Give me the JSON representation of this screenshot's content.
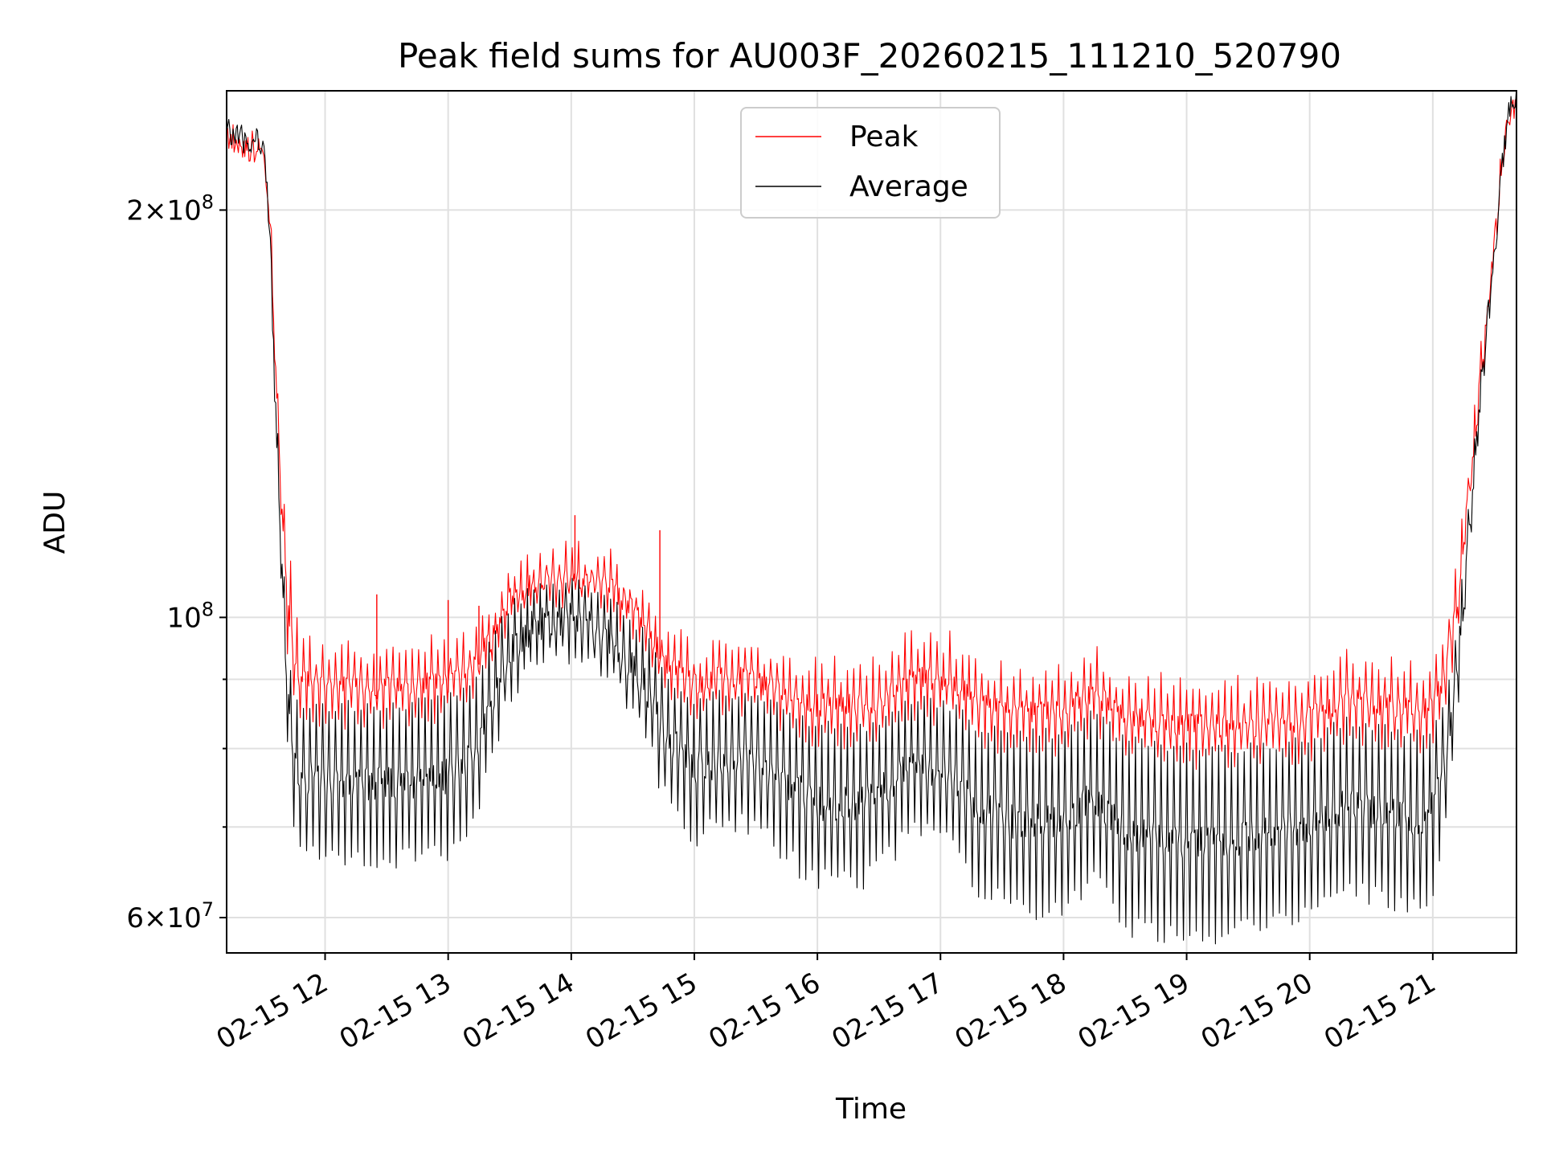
{
  "chart_data": {
    "type": "line",
    "title": "Peak field sums for AU003F_20260215_111210_520790",
    "xlabel": "Time",
    "ylabel": "ADU",
    "yscale": "log",
    "xlim": [
      11.2,
      21.68
    ],
    "ylim": [
      56500000,
      245000000
    ],
    "grid": true,
    "legend_position": "top-center",
    "x_ticks": [
      {
        "value": 12,
        "label": "02-15 12"
      },
      {
        "value": 13,
        "label": "02-15 13"
      },
      {
        "value": 14,
        "label": "02-15 14"
      },
      {
        "value": 15,
        "label": "02-15 15"
      },
      {
        "value": 16,
        "label": "02-15 16"
      },
      {
        "value": 17,
        "label": "02-15 17"
      },
      {
        "value": 18,
        "label": "02-15 18"
      },
      {
        "value": 19,
        "label": "02-15 19"
      },
      {
        "value": 20,
        "label": "02-15 20"
      },
      {
        "value": 21,
        "label": "02-15 21"
      }
    ],
    "y_major_ticks": [
      {
        "value": 60000000,
        "base": "6",
        "exp": "7"
      },
      {
        "value": 100000000,
        "base": "",
        "exp": "8"
      },
      {
        "value": 200000000,
        "base": "2",
        "exp": "8"
      }
    ],
    "y_minor_gridlines": [
      70000000,
      80000000,
      90000000
    ],
    "series": [
      {
        "name": "Peak",
        "color": "#ff0000",
        "envelope_x": [
          11.2,
          11.5,
          11.55,
          11.6,
          11.65,
          11.7,
          11.75,
          11.8,
          11.9,
          12.0,
          12.5,
          13.0,
          13.2,
          13.35,
          13.5,
          13.7,
          14.0,
          14.3,
          14.6,
          14.75,
          15.0,
          15.4,
          15.8,
          16.0,
          16.4,
          16.8,
          17.1,
          17.3,
          17.6,
          18.0,
          18.25,
          18.5,
          19.0,
          19.5,
          20.0,
          20.3,
          20.6,
          20.9,
          21.0,
          21.1,
          21.2,
          21.3,
          21.4,
          21.5,
          21.55,
          21.6,
          21.68
        ],
        "envelope_peak": [
          230000000,
          225000000,
          205000000,
          155000000,
          128000000,
          112000000,
          103000000,
          97000000,
          95000000,
          95000000,
          95000000,
          96000000,
          97000000,
          100000000,
          108000000,
          111000000,
          112000000,
          111000000,
          104000000,
          98000000,
          95000000,
          96000000,
          93000000,
          92000000,
          92000000,
          97000000,
          96000000,
          93000000,
          91000000,
          91000000,
          94000000,
          90000000,
          89000000,
          89000000,
          90000000,
          93000000,
          92000000,
          91000000,
          92000000,
          98000000,
          110000000,
          130000000,
          160000000,
          195000000,
          215000000,
          235000000,
          245000000
        ],
        "envelope_base": [
          230000000,
          224000000,
          200000000,
          150000000,
          118000000,
          96000000,
          88000000,
          87000000,
          87000000,
          87000000,
          87000000,
          88000000,
          90000000,
          97000000,
          103000000,
          106000000,
          107000000,
          105000000,
          98000000,
          92000000,
          88000000,
          89000000,
          86000000,
          84000000,
          84000000,
          88000000,
          87000000,
          84000000,
          83000000,
          83000000,
          86000000,
          82000000,
          81000000,
          81000000,
          82000000,
          85000000,
          84000000,
          83000000,
          84000000,
          88000000,
          100000000,
          125000000,
          155000000,
          190000000,
          212000000,
          233000000,
          244000000
        ]
      },
      {
        "name": "Average",
        "color": "#000000",
        "envelope_x": [
          11.2,
          11.5,
          11.55,
          11.6,
          11.65,
          11.7,
          11.75,
          11.8,
          11.9,
          12.0,
          12.5,
          13.0,
          13.2,
          13.35,
          13.5,
          13.7,
          14.0,
          14.3,
          14.6,
          14.75,
          15.0,
          15.4,
          15.8,
          16.0,
          16.4,
          16.8,
          17.1,
          17.3,
          17.6,
          18.0,
          18.25,
          18.5,
          19.0,
          19.5,
          20.0,
          20.3,
          20.6,
          20.9,
          21.0,
          21.1,
          21.2,
          21.3,
          21.4,
          21.5,
          21.55,
          21.6,
          21.68
        ],
        "envelope_high": [
          229000000,
          223000000,
          198000000,
          148000000,
          116000000,
          95000000,
          87000000,
          86000000,
          86000000,
          86000000,
          86000000,
          87000000,
          89000000,
          96000000,
          102000000,
          105000000,
          106000000,
          104000000,
          97000000,
          91000000,
          87000000,
          88000000,
          85000000,
          83000000,
          83000000,
          87000000,
          86000000,
          83000000,
          82000000,
          82000000,
          85000000,
          81000000,
          80000000,
          80000000,
          81000000,
          84000000,
          83000000,
          82000000,
          83000000,
          87000000,
          99000000,
          124000000,
          154000000,
          189000000,
          211000000,
          232000000,
          243000000
        ],
        "envelope_low": [
          228000000,
          222000000,
          190000000,
          135000000,
          100000000,
          80000000,
          70000000,
          68000000,
          67000000,
          67000000,
          66000000,
          67000000,
          70000000,
          78000000,
          88000000,
          93000000,
          94000000,
          91000000,
          82000000,
          74000000,
          69000000,
          71000000,
          66000000,
          64000000,
          64000000,
          70000000,
          68000000,
          63000000,
          61000000,
          61000000,
          64000000,
          59000000,
          58000000,
          59000000,
          61000000,
          63000000,
          62000000,
          61000000,
          63000000,
          70000000,
          85000000,
          110000000,
          145000000,
          182000000,
          208000000,
          230000000,
          242000000
        ]
      }
    ]
  }
}
